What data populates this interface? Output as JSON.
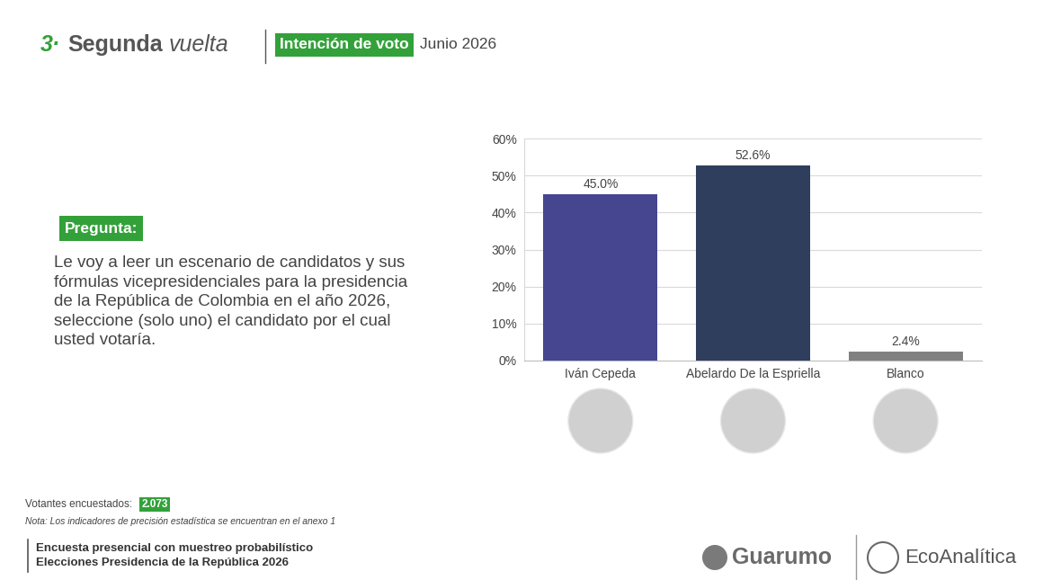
{
  "chart_data": {
    "type": "bar",
    "categories": [
      "Iván Cepeda",
      "Abelardo De la Espriella",
      "Blanco"
    ],
    "values": [
      45.0,
      52.6,
      2.4
    ],
    "value_labels": [
      "45.0%",
      "52.6%",
      "2.4%"
    ],
    "colors": [
      "#45468f",
      "#2e3e5c",
      "#808080"
    ],
    "ylim": [
      0,
      60
    ],
    "yticks": [
      {
        "value": 0,
        "label": "0%"
      },
      {
        "value": 10,
        "label": "10%"
      },
      {
        "value": 20,
        "label": "20%"
      },
      {
        "value": 30,
        "label": "30%"
      },
      {
        "value": 40,
        "label": "40%"
      },
      {
        "value": 50,
        "label": "50%"
      },
      {
        "value": 60,
        "label": "60%"
      }
    ],
    "grid": true,
    "data_labels": true
  },
  "slide": {
    "number": "3·",
    "title": "Segunda",
    "title_italic": "vuelta",
    "tag": "Intención de voto",
    "date": "Junio 2026",
    "question_label": "Pregunta:",
    "question": "Le voy a leer un escenario de candidatos y sus fórmulas vicepresidenciales para la presidencia de la República de Colombia en el año 2026, seleccione (solo uno) el candidato por el cual usted votaría.",
    "sample_label": "Votantes encuestados:",
    "sample_size": "2.073",
    "note": "Nota: Los indicadores de precisión estadística se encuentran en el anexo 1",
    "footer": [
      "Encuesta presencial con muestreo probabilístico",
      "Elecciones Presidencia de la República 2026"
    ],
    "logos": [
      "Guarumo",
      "EcoAnalítica"
    ]
  }
}
